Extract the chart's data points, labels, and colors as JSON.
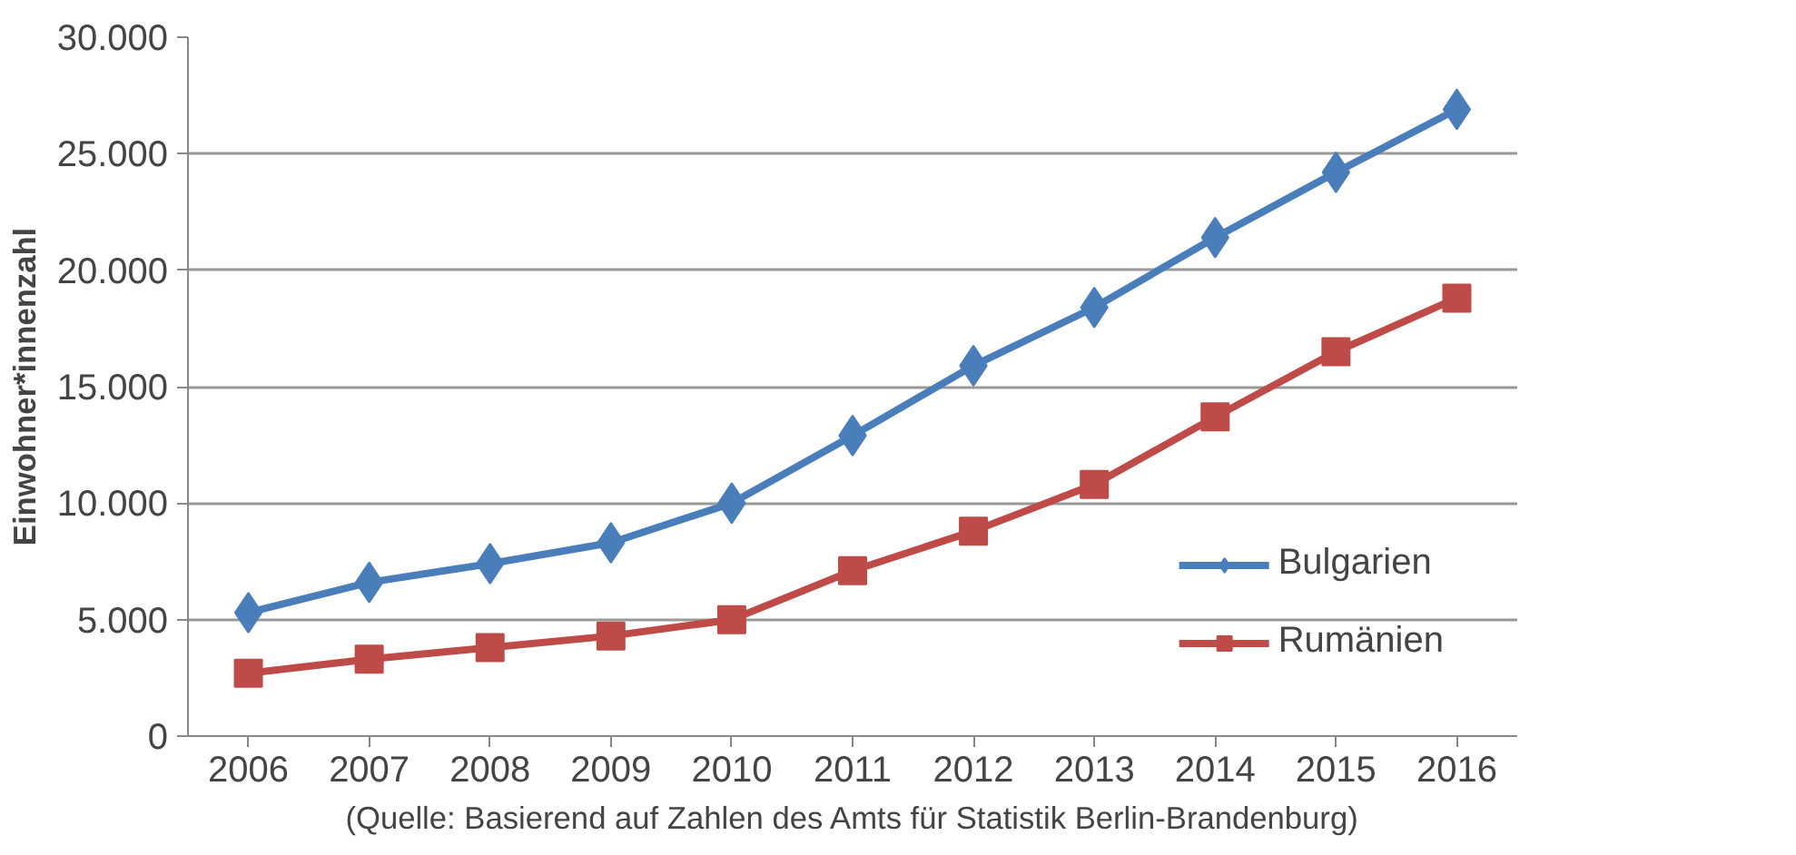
{
  "chart_data": {
    "type": "line",
    "categories": [
      "2006",
      "2007",
      "2008",
      "2009",
      "2010",
      "2011",
      "2012",
      "2013",
      "2014",
      "2015",
      "2016"
    ],
    "ylabel": "Einwohner*innenzahl",
    "series": [
      {
        "name": "Bulgarien",
        "color": "#4a7ebb",
        "marker": "diamond",
        "values": [
          5300,
          6600,
          7400,
          8300,
          10000,
          12900,
          15900,
          18400,
          21400,
          24200,
          26900
        ]
      },
      {
        "name": "Rumänien",
        "color": "#be4b48",
        "marker": "square",
        "values": [
          2700,
          3300,
          3800,
          4300,
          5000,
          7100,
          8800,
          10800,
          13700,
          16500,
          18800
        ]
      }
    ],
    "ylim": [
      0,
      30000
    ],
    "yticks": [
      {
        "value": 0,
        "label": "0"
      },
      {
        "value": 5000,
        "label": "5.000"
      },
      {
        "value": 10000,
        "label": "10.000"
      },
      {
        "value": 15000,
        "label": "15.000"
      },
      {
        "value": 20000,
        "label": "20.000"
      },
      {
        "value": 25000,
        "label": "25.000"
      },
      {
        "value": 30000,
        "label": "30.000"
      }
    ],
    "grid": "y",
    "legend": "bottom right",
    "annotations": [
      "(Quelle: Basierend auf Zahlen des Amts für Statistik Berlin-Brandenburg)"
    ]
  }
}
